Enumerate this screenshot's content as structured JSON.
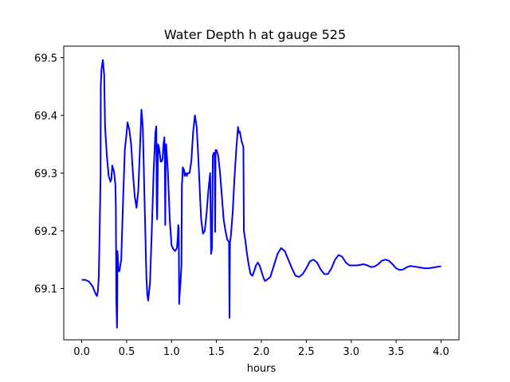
{
  "chart_data": {
    "type": "line",
    "title": "Water Depth h at gauge 525",
    "xlabel": "hours",
    "ylabel": "",
    "xlim": [
      -0.2,
      4.2
    ],
    "ylim": [
      69.011,
      69.52
    ],
    "xticks": [
      0.0,
      0.5,
      1.0,
      1.5,
      2.0,
      2.5,
      3.0,
      3.5,
      4.0
    ],
    "xtick_labels": [
      "0.0",
      "0.5",
      "1.0",
      "1.5",
      "2.0",
      "2.5",
      "3.0",
      "3.5",
      "4.0"
    ],
    "yticks": [
      69.1,
      69.2,
      69.3,
      69.4,
      69.5
    ],
    "ytick_labels": [
      "69.1",
      "69.2",
      "69.3",
      "69.4",
      "69.5"
    ],
    "grid": false,
    "colors": {
      "line": "#0000ff",
      "axes": "#000000"
    },
    "series": [
      {
        "values_xy": [
          [
            0.0,
            69.115
          ],
          [
            0.04,
            69.115
          ],
          [
            0.08,
            69.112
          ],
          [
            0.12,
            69.104
          ],
          [
            0.16,
            69.089
          ],
          [
            0.17,
            69.087
          ],
          [
            0.18,
            69.095
          ],
          [
            0.19,
            69.12
          ],
          [
            0.2,
            69.2
          ],
          [
            0.21,
            69.3
          ],
          [
            0.212,
            69.45
          ],
          [
            0.22,
            69.48
          ],
          [
            0.235,
            69.496
          ],
          [
            0.25,
            69.47
          ],
          [
            0.26,
            69.38
          ],
          [
            0.28,
            69.33
          ],
          [
            0.3,
            69.295
          ],
          [
            0.32,
            69.285
          ],
          [
            0.33,
            69.29
          ],
          [
            0.34,
            69.313
          ],
          [
            0.36,
            69.302
          ],
          [
            0.375,
            69.28
          ],
          [
            0.38,
            69.24
          ],
          [
            0.385,
            69.08
          ],
          [
            0.39,
            69.05
          ],
          [
            0.393,
            69.032
          ],
          [
            0.396,
            69.07
          ],
          [
            0.398,
            69.165
          ],
          [
            0.4,
            69.16
          ],
          [
            0.41,
            69.13
          ],
          [
            0.42,
            69.13
          ],
          [
            0.44,
            69.15
          ],
          [
            0.46,
            69.25
          ],
          [
            0.48,
            69.34
          ],
          [
            0.5,
            69.37
          ],
          [
            0.51,
            69.388
          ],
          [
            0.53,
            69.375
          ],
          [
            0.55,
            69.35
          ],
          [
            0.57,
            69.3
          ],
          [
            0.59,
            69.26
          ],
          [
            0.61,
            69.24
          ],
          [
            0.63,
            69.27
          ],
          [
            0.65,
            69.35
          ],
          [
            0.665,
            69.41
          ],
          [
            0.68,
            69.38
          ],
          [
            0.7,
            69.25
          ],
          [
            0.72,
            69.12
          ],
          [
            0.73,
            69.09
          ],
          [
            0.74,
            69.079
          ],
          [
            0.76,
            69.11
          ],
          [
            0.78,
            69.2
          ],
          [
            0.8,
            69.3
          ],
          [
            0.82,
            69.37
          ],
          [
            0.83,
            69.381
          ],
          [
            0.835,
            69.25
          ],
          [
            0.84,
            69.22
          ],
          [
            0.85,
            69.35
          ],
          [
            0.86,
            69.345
          ],
          [
            0.88,
            69.32
          ],
          [
            0.89,
            69.32
          ],
          [
            0.9,
            69.325
          ],
          [
            0.91,
            69.35
          ],
          [
            0.92,
            69.362
          ],
          [
            0.925,
            69.33
          ],
          [
            0.93,
            69.21
          ],
          [
            0.935,
            69.33
          ],
          [
            0.94,
            69.35
          ],
          [
            0.96,
            69.3
          ],
          [
            0.98,
            69.22
          ],
          [
            1.0,
            69.175
          ],
          [
            1.02,
            69.168
          ],
          [
            1.04,
            69.165
          ],
          [
            1.06,
            69.17
          ],
          [
            1.07,
            69.19
          ],
          [
            1.075,
            69.21
          ],
          [
            1.08,
            69.205
          ],
          [
            1.085,
            69.073
          ],
          [
            1.09,
            69.09
          ],
          [
            1.1,
            69.11
          ],
          [
            1.11,
            69.14
          ],
          [
            1.115,
            69.28
          ],
          [
            1.12,
            69.29
          ],
          [
            1.125,
            69.31
          ],
          [
            1.13,
            69.308
          ],
          [
            1.14,
            69.305
          ],
          [
            1.145,
            69.295
          ],
          [
            1.15,
            69.3
          ],
          [
            1.16,
            69.3
          ],
          [
            1.17,
            69.295
          ],
          [
            1.18,
            69.3
          ],
          [
            1.2,
            69.3
          ],
          [
            1.22,
            69.32
          ],
          [
            1.24,
            69.37
          ],
          [
            1.26,
            69.4
          ],
          [
            1.28,
            69.38
          ],
          [
            1.3,
            69.32
          ],
          [
            1.32,
            69.25
          ],
          [
            1.33,
            69.22
          ],
          [
            1.35,
            69.195
          ],
          [
            1.37,
            69.2
          ],
          [
            1.39,
            69.23
          ],
          [
            1.41,
            69.27
          ],
          [
            1.43,
            69.3
          ],
          [
            1.44,
            69.16
          ],
          [
            1.45,
            69.17
          ],
          [
            1.46,
            69.33
          ],
          [
            1.47,
            69.335
          ],
          [
            1.48,
            69.335
          ],
          [
            1.485,
            69.198
          ],
          [
            1.49,
            69.34
          ],
          [
            1.5,
            69.34
          ],
          [
            1.52,
            69.33
          ],
          [
            1.54,
            69.3
          ],
          [
            1.56,
            69.26
          ],
          [
            1.58,
            69.22
          ],
          [
            1.6,
            69.2
          ],
          [
            1.62,
            69.185
          ],
          [
            1.64,
            69.18
          ],
          [
            1.645,
            69.049
          ],
          [
            1.65,
            69.18
          ],
          [
            1.66,
            69.19
          ],
          [
            1.68,
            69.23
          ],
          [
            1.7,
            69.29
          ],
          [
            1.72,
            69.34
          ],
          [
            1.74,
            69.38
          ],
          [
            1.75,
            69.37
          ],
          [
            1.76,
            69.372
          ],
          [
            1.78,
            69.355
          ],
          [
            1.8,
            69.345
          ],
          [
            1.805,
            69.2
          ],
          [
            1.82,
            69.185
          ],
          [
            1.84,
            69.16
          ],
          [
            1.86,
            69.14
          ],
          [
            1.88,
            69.125
          ],
          [
            1.9,
            69.122
          ],
          [
            1.92,
            69.13
          ],
          [
            1.94,
            69.14
          ],
          [
            1.96,
            69.145
          ],
          [
            1.98,
            69.14
          ],
          [
            2.0,
            69.13
          ],
          [
            2.02,
            69.12
          ],
          [
            2.04,
            69.113
          ],
          [
            2.06,
            69.115
          ],
          [
            2.1,
            69.12
          ],
          [
            2.14,
            69.14
          ],
          [
            2.18,
            69.16
          ],
          [
            2.22,
            69.17
          ],
          [
            2.26,
            69.165
          ],
          [
            2.3,
            69.15
          ],
          [
            2.34,
            69.135
          ],
          [
            2.38,
            69.122
          ],
          [
            2.42,
            69.12
          ],
          [
            2.46,
            69.125
          ],
          [
            2.5,
            69.135
          ],
          [
            2.54,
            69.147
          ],
          [
            2.58,
            69.15
          ],
          [
            2.62,
            69.145
          ],
          [
            2.66,
            69.133
          ],
          [
            2.7,
            69.125
          ],
          [
            2.74,
            69.125
          ],
          [
            2.78,
            69.135
          ],
          [
            2.82,
            69.15
          ],
          [
            2.86,
            69.158
          ],
          [
            2.9,
            69.155
          ],
          [
            2.94,
            69.145
          ],
          [
            2.98,
            69.14
          ],
          [
            3.02,
            69.14
          ],
          [
            3.06,
            69.14
          ],
          [
            3.1,
            69.141
          ],
          [
            3.14,
            69.142
          ],
          [
            3.18,
            69.14
          ],
          [
            3.22,
            69.137
          ],
          [
            3.26,
            69.138
          ],
          [
            3.3,
            69.142
          ],
          [
            3.34,
            69.148
          ],
          [
            3.38,
            69.15
          ],
          [
            3.42,
            69.148
          ],
          [
            3.46,
            69.142
          ],
          [
            3.5,
            69.135
          ],
          [
            3.54,
            69.132
          ],
          [
            3.58,
            69.133
          ],
          [
            3.62,
            69.137
          ],
          [
            3.66,
            69.139
          ],
          [
            3.7,
            69.138
          ],
          [
            3.74,
            69.137
          ],
          [
            3.78,
            69.136
          ],
          [
            3.82,
            69.135
          ],
          [
            3.86,
            69.135
          ],
          [
            3.9,
            69.136
          ],
          [
            3.94,
            69.137
          ],
          [
            3.98,
            69.138
          ],
          [
            4.0,
            69.138
          ]
        ]
      }
    ]
  }
}
